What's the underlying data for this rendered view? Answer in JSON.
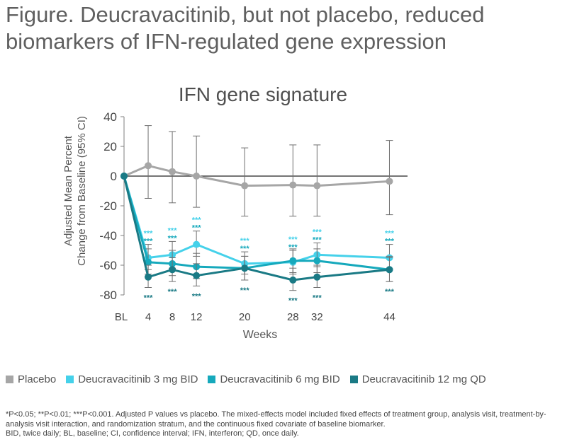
{
  "figure_title": "Figure. Deucravacitinib, but not placebo, reduced biomarkers of IFN-regulated gene expression",
  "footnote": {
    "line1": "*P<0.05; **P<0.01; ***P<0.001. Adjusted P values vs placebo. The mixed-effects model included fixed effects of treatment group, analysis visit, treatment-by-analysis visit interaction, and randomization stratum, and the continuous fixed covariate of baseline biomarker.",
    "line2": "BID, twice daily; BL, baseline; CI, confidence interval; IFN, interferon; QD, once daily."
  },
  "chart_data": {
    "type": "line",
    "title": "IFN gene signature",
    "xlabel": "Weeks",
    "ylabel": "Adjusted Mean Percent Change from Baseline (95% CI)",
    "ylim": [
      -80,
      40
    ],
    "yticks": [
      40,
      20,
      0,
      -20,
      -40,
      -60,
      -80
    ],
    "x": [
      0,
      4,
      8,
      12,
      20,
      28,
      32,
      44
    ],
    "x_tick_labels": [
      "BL",
      "4",
      "8",
      "12",
      "20",
      "28",
      "32",
      "44"
    ],
    "significance_label": "***",
    "legend_position": "bottom",
    "series": [
      {
        "name": "Placebo",
        "color": "#a6a6a6",
        "values": [
          0,
          7,
          3,
          0,
          -6.5,
          -6,
          -6.5,
          -3.5
        ],
        "ci_low": [
          0,
          -15,
          -18,
          -21,
          -27,
          -27,
          -27,
          -26
        ],
        "ci_high": [
          0,
          34,
          30,
          27,
          19,
          21,
          21,
          24
        ],
        "significance": [
          false,
          false,
          false,
          false,
          false,
          false,
          false,
          false
        ]
      },
      {
        "name": "Deucravacitinib 3 mg BID",
        "color": "#45d1ea",
        "values": [
          0,
          -55,
          -53,
          -46,
          -59,
          -58,
          -53,
          -55
        ],
        "ci_low": [
          0,
          -63,
          -62,
          -54,
          -66,
          -66,
          -61,
          -63
        ],
        "ci_high": [
          0,
          -46,
          -44,
          -37,
          -51,
          -50,
          -45,
          -46
        ],
        "significance": [
          false,
          true,
          true,
          true,
          true,
          true,
          true,
          true
        ]
      },
      {
        "name": "Deucravacitinib 6 mg BID",
        "color": "#16a9bc",
        "values": [
          0,
          -58,
          -59,
          -61,
          -62,
          -57,
          -57,
          -63
        ],
        "ci_low": [
          0,
          -66,
          -67,
          -69,
          -70,
          -65,
          -65,
          -71
        ],
        "ci_high": [
          0,
          -49,
          -50,
          -52,
          -54,
          -49,
          -49,
          -54
        ],
        "significance": [
          false,
          true,
          true,
          true,
          true,
          true,
          true,
          true
        ]
      },
      {
        "name": "Deucravacitinib 12 mg QD",
        "color": "#1a7a85",
        "values": [
          0,
          -68,
          -63,
          -67,
          -62,
          -70,
          -68,
          -63
        ],
        "ci_low": [
          0,
          -75,
          -71,
          -74,
          -70,
          -77,
          -75,
          -71
        ],
        "ci_high": [
          0,
          -60,
          -55,
          -59,
          -54,
          -62,
          -60,
          -55
        ],
        "significance": [
          false,
          true,
          true,
          true,
          true,
          true,
          true,
          true
        ]
      }
    ]
  }
}
